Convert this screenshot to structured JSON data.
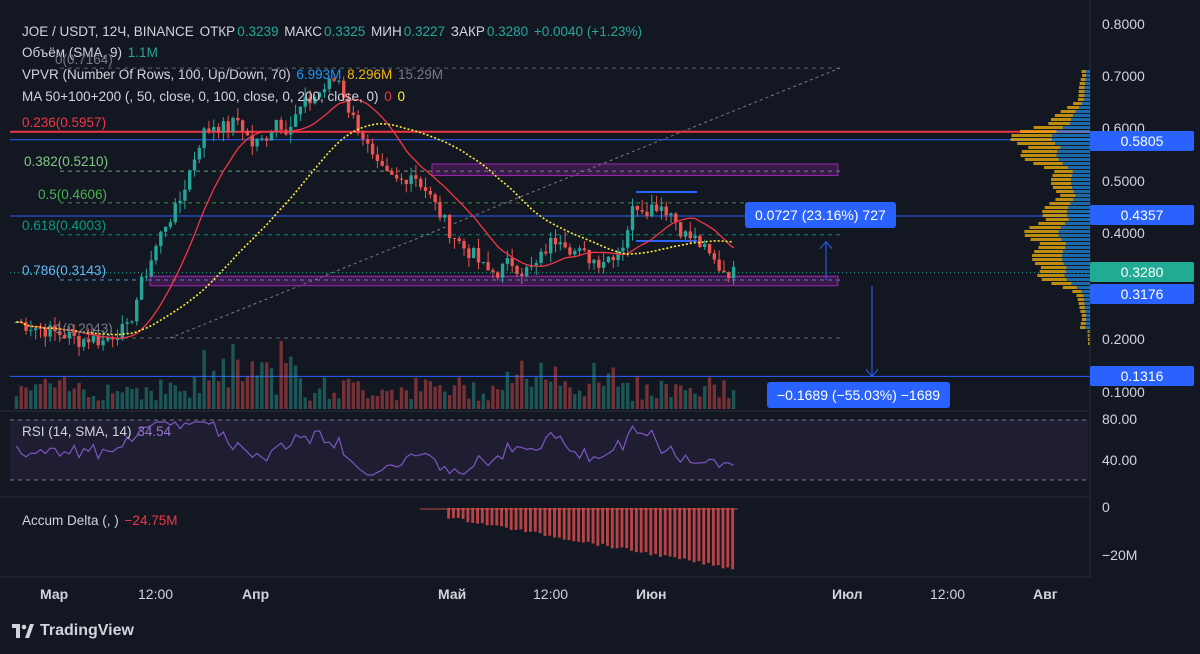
{
  "header": {
    "symbol": "JOE / USDT, 12Ч, BINANCE",
    "open_label": "ОТКР",
    "open_value": "0.3239",
    "high_label": "МАКС",
    "high_value": "0.3325",
    "low_label": "МИН",
    "low_value": "0.3227",
    "close_label": "ЗАКР",
    "close_value": "0.3280",
    "change": "+0.0040 (+1.23%)"
  },
  "indicators": {
    "volume": {
      "label": "Объём (SMA, 9)",
      "value": "1.1M"
    },
    "vpvr": {
      "label": "VPVR (Number Of Rows, 100, Up/Down, 70)",
      "up": "6.993M",
      "down": "8.296M",
      "total": "15.29M"
    },
    "ma": {
      "label": "MA 50+100+200 (, 50, close, 0, 100, close, 0, 200, close, 0)",
      "v1": "0",
      "v2": "0"
    },
    "rsi": {
      "label": "RSI (14, SMA, 14)",
      "value": "34.54"
    },
    "accum_delta": {
      "label": "Accum Delta (, )",
      "value": "−24.75M"
    }
  },
  "fib_levels": [
    {
      "label": "0(0.7164)",
      "color": "#787b86"
    },
    {
      "label": "0.236(0.5957)",
      "color": "#f23645"
    },
    {
      "label": "0.382(0.5210)",
      "color": "#81c784"
    },
    {
      "label": "0.5(0.4606)",
      "color": "#4caf50"
    },
    {
      "label": "0.618(0.4003)",
      "color": "#089981"
    },
    {
      "label": "0.786(0.3143)",
      "color": "#64b5f6"
    },
    {
      "label": "1(0.2043)",
      "color": "#787b86"
    }
  ],
  "price_axis": {
    "ticks": [
      "0.8000",
      "0.7000",
      "0.6000",
      "0.5000",
      "0.4000",
      "0.2000",
      "0.1000"
    ],
    "tags": [
      {
        "text": "0.5805",
        "color": "#2962ff"
      },
      {
        "text": "0.4357",
        "color": "#2962ff"
      },
      {
        "text": "0.3280",
        "color": "#22ab94"
      },
      {
        "text": "0.3176",
        "color": "#2962ff"
      },
      {
        "text": "0.1316",
        "color": "#2962ff"
      }
    ]
  },
  "rsi_axis": [
    "80.00",
    "40.00"
  ],
  "delta_axis": [
    "0",
    "−20M"
  ],
  "time_axis": [
    "Мар",
    "12:00",
    "Апр",
    "Май",
    "12:00",
    "Июн",
    "Июл",
    "12:00",
    "Авг"
  ],
  "measures": {
    "up": "0.0727 (23.16%) 727",
    "down": "−0.1689 (−55.03%) −1689"
  },
  "branding": "TradingView",
  "colors": {
    "up": "#26a69a",
    "down": "#ef5350",
    "ma50": "#f23645",
    "ma200": "#ffeb3b",
    "rsi": "#7e57c2",
    "vpvr_up": "#2196f3",
    "vpvr_down": "#f5b50a"
  },
  "chart_data": {
    "type": "candlestick",
    "symbol": "JOE / USDT",
    "interval": "12Ч",
    "x_labels": [
      "Мар",
      "12:00",
      "Апр",
      "Май",
      "12:00",
      "Июн",
      "Июл",
      "12:00",
      "Авг"
    ],
    "ylim": [
      0.08,
      0.82
    ],
    "close_path": [
      0.235,
      0.228,
      0.222,
      0.215,
      0.21,
      0.2,
      0.205,
      0.198,
      0.215,
      0.22,
      0.3,
      0.36,
      0.42,
      0.45,
      0.52,
      0.59,
      0.61,
      0.6,
      0.62,
      0.57,
      0.58,
      0.62,
      0.6,
      0.64,
      0.66,
      0.68,
      0.7,
      0.63,
      0.59,
      0.53,
      0.51,
      0.5,
      0.52,
      0.49,
      0.45,
      0.41,
      0.38,
      0.36,
      0.33,
      0.33,
      0.35,
      0.33,
      0.34,
      0.38,
      0.4,
      0.37,
      0.36,
      0.35,
      0.36,
      0.38,
      0.46,
      0.45,
      0.46,
      0.44,
      0.4,
      0.39,
      0.36,
      0.335,
      0.328
    ],
    "levels": {
      "fib_0": 0.7164,
      "fib_0_236": 0.5957,
      "fib_0_382": 0.521,
      "fib_0_5": 0.4606,
      "fib_0_618": 0.4003,
      "fib_0_786": 0.3143,
      "fib_1": 0.2043
    },
    "rsi_last": 34.54,
    "accum_delta_last": -24.75
  }
}
